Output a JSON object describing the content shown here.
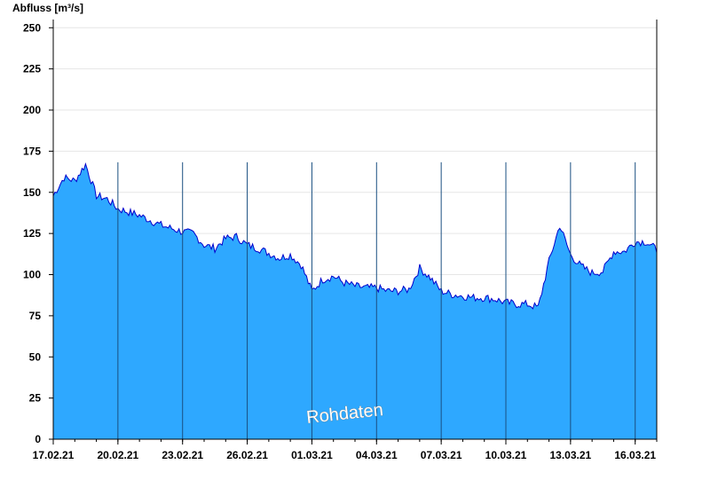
{
  "chart_data": {
    "type": "area",
    "ylabel": "Abfluss [m³/s]",
    "ylim": [
      0,
      255
    ],
    "yticks": [
      0,
      25,
      50,
      75,
      100,
      125,
      150,
      175,
      200,
      225,
      250
    ],
    "xlim": [
      "2021-02-17",
      "2021-03-17"
    ],
    "xtick_labels": [
      "17.02.21",
      "20.02.21",
      "23.02.21",
      "26.02.21",
      "01.03.21",
      "04.03.21",
      "07.03.21",
      "10.03.21",
      "13.03.21",
      "16.03.21"
    ],
    "grid": true,
    "watermark": "Rohdaten",
    "colors": {
      "fill": "#2ea8ff",
      "line": "#0000cc",
      "grid": "#e6e6e6",
      "axis": "#000000",
      "daylines": "#1a4f80"
    },
    "series": [
      {
        "x": [
          "2021-02-17",
          "2021-02-17T12:00",
          "2021-02-18",
          "2021-02-18T12:00",
          "2021-02-19",
          "2021-02-19T12:00",
          "2021-02-20",
          "2021-02-20T12:00",
          "2021-02-21",
          "2021-02-21T12:00",
          "2021-02-22",
          "2021-02-22T12:00",
          "2021-02-23",
          "2021-02-23T12:00",
          "2021-02-24",
          "2021-02-24T12:00",
          "2021-02-25",
          "2021-02-25T12:00",
          "2021-02-26",
          "2021-02-26T12:00",
          "2021-02-27",
          "2021-02-27T12:00",
          "2021-02-28",
          "2021-02-28T12:00",
          "2021-03-01",
          "2021-03-01T12:00",
          "2021-03-02",
          "2021-03-02T12:00",
          "2021-03-03",
          "2021-03-03T12:00",
          "2021-03-04",
          "2021-03-04T12:00",
          "2021-03-05",
          "2021-03-05T12:00",
          "2021-03-06",
          "2021-03-06T12:00",
          "2021-03-07",
          "2021-03-07T12:00",
          "2021-03-08",
          "2021-03-08T12:00",
          "2021-03-09",
          "2021-03-09T12:00",
          "2021-03-10",
          "2021-03-10T12:00",
          "2021-03-11",
          "2021-03-11T12:00",
          "2021-03-12",
          "2021-03-12T12:00",
          "2021-03-13",
          "2021-03-13T12:00",
          "2021-03-14",
          "2021-03-14T12:00",
          "2021-03-15",
          "2021-03-15T12:00",
          "2021-03-16",
          "2021-03-16T12:00",
          "2021-03-17"
        ],
        "y": [
          148,
          159,
          157,
          167,
          148,
          146,
          140,
          138,
          136,
          133,
          130,
          128,
          126,
          125,
          118,
          116,
          122,
          123,
          118,
          116,
          113,
          110,
          112,
          106,
          90,
          97,
          99,
          95,
          93,
          92,
          92,
          90,
          90,
          91,
          104,
          98,
          90,
          88,
          87,
          86,
          86,
          85,
          83,
          82,
          82,
          80,
          108,
          130,
          112,
          105,
          101,
          102,
          114,
          114,
          120,
          120,
          115
        ]
      }
    ]
  }
}
